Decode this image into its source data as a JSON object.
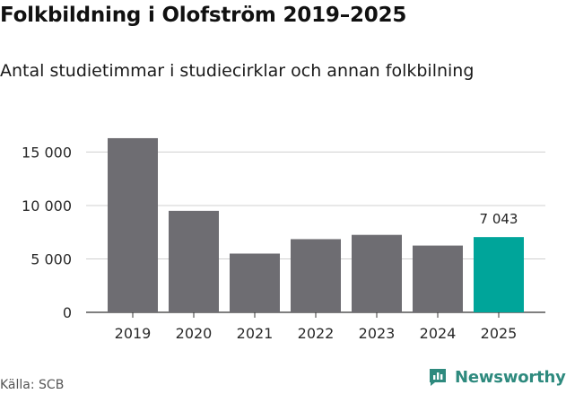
{
  "title": "Folkbildning i Olofström 2019–2025",
  "subtitle": "Antal studietimmar i studiecirklar och annan folkbilning",
  "source": "Källa: SCB",
  "brand": {
    "name": "Newsworthy",
    "icon": "newsworthy-logo-icon"
  },
  "colors": {
    "bar": "#6e6d72",
    "highlight": "#00a59a",
    "grid": "#d0d0d0",
    "axis": "#333333",
    "brand": "#2e8a7e"
  },
  "chart_data": {
    "type": "bar",
    "title": "Folkbildning i Olofström 2019–2025",
    "subtitle": "Antal studietimmar i studiecirklar och annan folkbilning",
    "xlabel": "",
    "ylabel": "",
    "categories": [
      "2019",
      "2020",
      "2021",
      "2022",
      "2023",
      "2024",
      "2025"
    ],
    "values": [
      16300,
      9500,
      5500,
      6850,
      7250,
      6250,
      7043
    ],
    "highlight_index": 6,
    "data_labels": [
      {
        "index": 6,
        "text": "7 043"
      }
    ],
    "yticks": [
      {
        "value": 0,
        "label": "0"
      },
      {
        "value": 5000,
        "label": "5 000"
      },
      {
        "value": 10000,
        "label": "10 000"
      },
      {
        "value": 15000,
        "label": "15 000"
      }
    ],
    "ylim": [
      0,
      16800
    ],
    "grid": true
  }
}
